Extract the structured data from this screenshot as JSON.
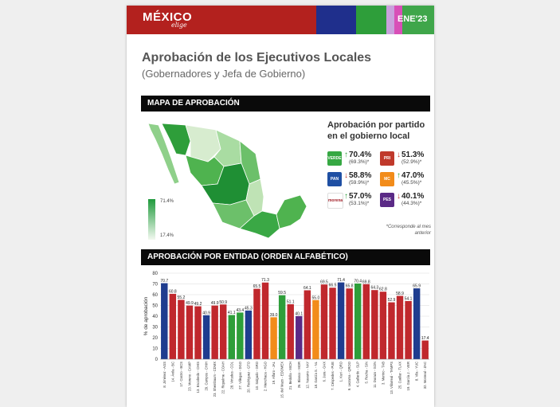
{
  "header": {
    "brand": "MÉXICO",
    "brand_sub": "elige",
    "edition": "ENE'23",
    "colors": [
      "#b3211e",
      "#1f2f8c",
      "#2e9e3a",
      "#c9a1dc",
      "#d84fb7",
      "#3fa64a"
    ]
  },
  "title": "Aprobación de los Ejecutivos Locales",
  "subtitle": "(Gobernadores y Jefa de Gobierno)",
  "map_section": {
    "label": "MAPA DE APROBACIÓN",
    "legend_max": "71.4%",
    "legend_min": "17.4%",
    "party_title": "Aprobación por partido en el gobierno local",
    "note": "*Corresponde al mes anterior",
    "parties": [
      {
        "logo": "VERDE",
        "value": "70.4%",
        "prev": "(69.3%)*",
        "arrow": "↑",
        "arrow_color": "#2e9e3a",
        "color": "#36a843"
      },
      {
        "logo": "PRI",
        "value": "51.3%",
        "prev": "(52.9%)*",
        "arrow": "↓",
        "arrow_color": "#c0392b",
        "color": "#c0392b"
      },
      {
        "logo": "PAN",
        "value": "58.8%",
        "prev": "(59.9%)*",
        "arrow": "↓",
        "arrow_color": "#c0392b",
        "color": "#1f4fa3"
      },
      {
        "logo": "MC",
        "value": "47.0%",
        "prev": "(45.5%)*",
        "arrow": "↑",
        "arrow_color": "#2e9e3a",
        "color": "#f28c1a"
      },
      {
        "logo": "morena",
        "value": "57.0%",
        "prev": "(53.1%)*",
        "arrow": "↑",
        "arrow_color": "#2e9e3a",
        "color": "#ffffff"
      },
      {
        "logo": "PES",
        "value": "40.1%",
        "prev": "(44.3%)*",
        "arrow": "↓",
        "arrow_color": "#c0392b",
        "color": "#5b2a86"
      }
    ]
  },
  "bars_section": {
    "label": "APROBACIÓN POR ENTIDAD (ORDEN ALFABÉTICO)"
  },
  "chart_data": {
    "type": "bar",
    "ylabel": "% de aprobación",
    "ylim": [
      0,
      80
    ],
    "yticks": [
      0,
      10,
      20,
      30,
      40,
      50,
      60,
      70,
      80
    ],
    "grid": true,
    "categories": [
      "8. Jiménez - AGS",
      "14. Ávila - BC",
      "17. Castro - BCS",
      "23. Moreno - CAMP",
      "13. Escobedo - CHIS",
      "29. Campos - CHIH",
      "23. Sheinbaum - CDMX",
      "22. Riquelme - COAH",
      "28. Virtudes - COL",
      "27. Villegas - DGO",
      "20. Rodríguez - GTO",
      "10. Salgado - GRO",
      "2. Menchaca - HGO",
      "19. Alfaro - JAL",
      "15. del Mazo - EDOMEX",
      "21. Bedolla - MICH",
      "26. Blanco - MOR",
      "12. Navarro - NAY",
      "18. García S. - NL",
      "6. Jara - OAX",
      "7. Céspedes - PUE",
      "1. Kuri - QRO",
      "9. Lezama - QROO",
      "4. Gallardo - SLP",
      "5. Rocha - SIN",
      "11. Durazo - SON",
      "3. Merino - TAB",
      "13. Villarreal - TAMPS",
      "25. Cuéllar - TLAX",
      "19. García J. - VER",
      "8. Vila - YUC",
      "32. Monreal - ZAC"
    ],
    "values": [
      70.7,
      60.8,
      55.2,
      49.9,
      49.2,
      40.9,
      49.9,
      50.9,
      41.1,
      43.4,
      45.3,
      65.5,
      71.3,
      39.0,
      59.5,
      51.1,
      40.1,
      64.1,
      55.0,
      69.5,
      66.5,
      71.4,
      65.8,
      70.4,
      69.8,
      64.3,
      62.8,
      52.9,
      58.9,
      54.1,
      65.9,
      17.4
    ],
    "colors": [
      "#1f3d8f",
      "#c0282d",
      "#c0282d",
      "#c0282d",
      "#c0282d",
      "#1f3d8f",
      "#c0282d",
      "#c0282d",
      "#2e9e3a",
      "#2e9e3a",
      "#1f3d8f",
      "#c0282d",
      "#c0282d",
      "#f28c1a",
      "#2e9e3a",
      "#c0282d",
      "#5b2a86",
      "#c0282d",
      "#f28c1a",
      "#c0282d",
      "#c0282d",
      "#1f3d8f",
      "#c0282d",
      "#2e9e3a",
      "#c0282d",
      "#c0282d",
      "#c0282d",
      "#c0282d",
      "#c0282d",
      "#c0282d",
      "#1f3d8f",
      "#c0282d"
    ]
  }
}
